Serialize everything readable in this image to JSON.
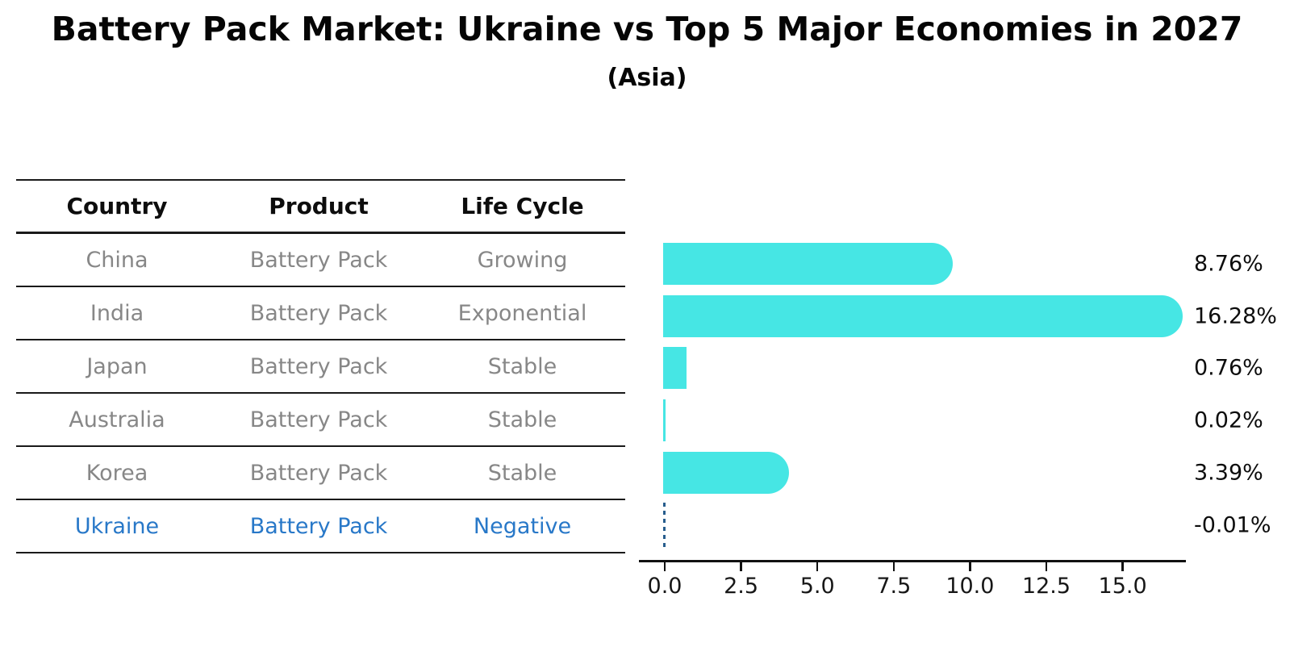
{
  "chart_data": {
    "type": "bar",
    "orientation": "horizontal",
    "title": "Battery Pack Market: Ukraine vs Top 5 Major Economies in 2027",
    "subtitle": "(Asia)",
    "categories": [
      "China",
      "India",
      "Japan",
      "Australia",
      "Korea",
      "Ukraine"
    ],
    "values": [
      8.76,
      16.28,
      0.76,
      0.02,
      3.39,
      -0.01
    ],
    "value_labels": [
      "8.76%",
      "16.28%",
      "0.76%",
      "0.02%",
      "3.39%",
      "-0.01%"
    ],
    "xlabel": "",
    "ylabel": "",
    "xlim": [
      -0.85,
      17.1
    ],
    "xtick_labels": [
      "0.0",
      "2.5",
      "5.0",
      "7.5",
      "10.0",
      "12.5",
      "15.0"
    ],
    "xtick_values": [
      0,
      2.5,
      5,
      7.5,
      10,
      12.5,
      15
    ],
    "grid": false,
    "legend": false,
    "bar_color": "#46e6e4",
    "negative_marker_color": "#275d8d",
    "negative_marker_style": "dotted-vertical-line-at-zero"
  },
  "table": {
    "headers": [
      "Country",
      "Product",
      "Life Cycle"
    ],
    "rows": [
      {
        "country": "China",
        "product": "Battery Pack",
        "life_cycle": "Growing",
        "highlighted": false
      },
      {
        "country": "India",
        "product": "Battery Pack",
        "life_cycle": "Exponential",
        "highlighted": false
      },
      {
        "country": "Japan",
        "product": "Battery Pack",
        "life_cycle": "Stable",
        "highlighted": false
      },
      {
        "country": "Australia",
        "product": "Battery Pack",
        "life_cycle": "Stable",
        "highlighted": false
      },
      {
        "country": "Korea",
        "product": "Battery Pack",
        "life_cycle": "Stable",
        "highlighted": false
      },
      {
        "country": "Ukraine",
        "product": "Battery Pack",
        "life_cycle": "Negative",
        "highlighted": true
      }
    ],
    "text_color": "#878787",
    "highlight_text_color": "#2878c8",
    "line_color": "#1a1a1a"
  }
}
